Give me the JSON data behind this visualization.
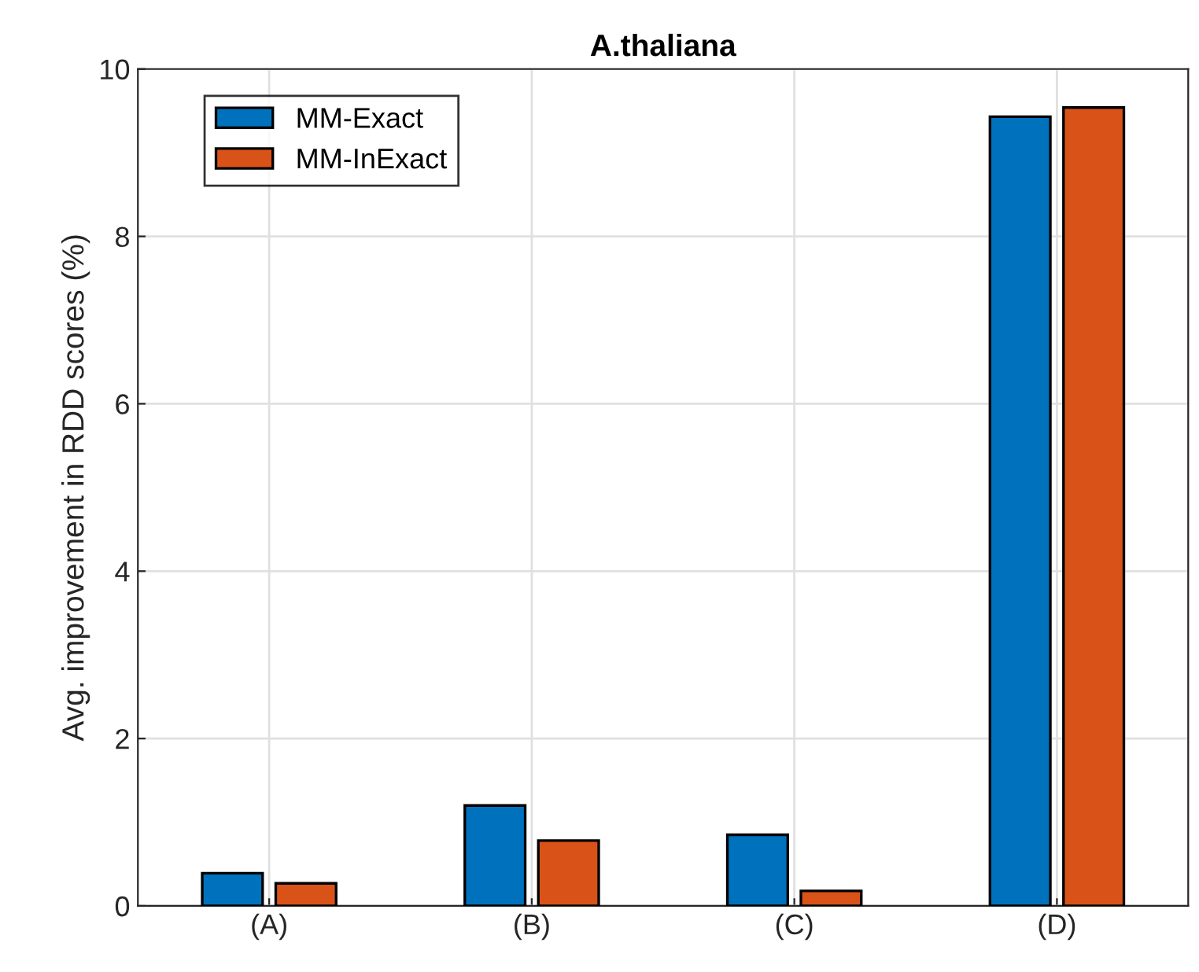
{
  "chart_data": {
    "type": "bar",
    "title": "A.thaliana",
    "ylabel": "Avg. improvement in RDD scores (%)",
    "categories": [
      "(A)",
      "(B)",
      "(C)",
      "(D)"
    ],
    "series": [
      {
        "name": "MM-Exact",
        "color": "#0072bd",
        "values": [
          0.39,
          1.2,
          0.85,
          9.43
        ]
      },
      {
        "name": "MM-InExact",
        "color": "#d95319",
        "values": [
          0.27,
          0.78,
          0.18,
          9.54
        ]
      }
    ],
    "ylim": [
      0,
      10
    ],
    "yticks": [
      0,
      2,
      4,
      6,
      8,
      10
    ],
    "grid": true,
    "legend": "top left"
  }
}
